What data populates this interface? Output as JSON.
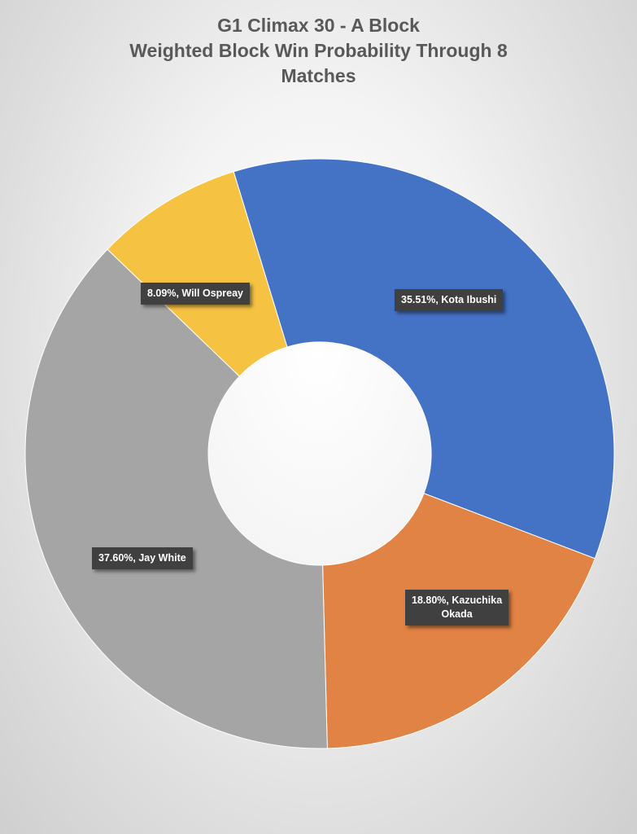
{
  "chart_data": {
    "type": "pie",
    "variant": "doughnut",
    "title_lines": [
      "G1 Climax 30 - A Block",
      "Weighted Block Win Probability Through 8",
      "Matches"
    ],
    "title": "G1 Climax 30 - A Block Weighted Block Win Probability Through 8 Matches",
    "categories": [
      "Kota Ibushi",
      "Kazuchika Okada",
      "Jay White",
      "Will Ospreay"
    ],
    "values": [
      35.51,
      18.8,
      37.6,
      8.09
    ],
    "unit": "%",
    "colors": [
      "#4472C4",
      "#E08344",
      "#A5A5A5",
      "#F5C242"
    ],
    "labels": [
      {
        "lines": [
          "35.51%, Kota Ibushi"
        ]
      },
      {
        "lines": [
          "18.80%, Kazuchika",
          "Okada"
        ]
      },
      {
        "lines": [
          "37.60%, Jay White"
        ]
      },
      {
        "lines": [
          "8.09%, Will Ospreay"
        ]
      }
    ],
    "legend": "none",
    "start_angle_deg": -17
  }
}
